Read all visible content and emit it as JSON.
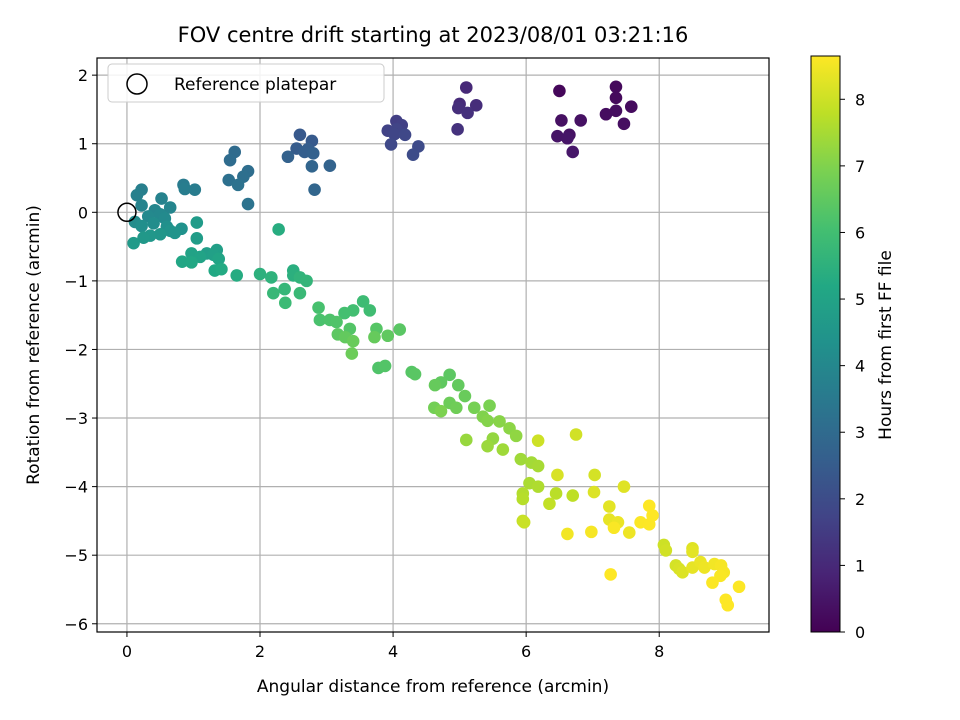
{
  "chart_data": {
    "type": "scatter",
    "title": "FOV centre drift starting at 2023/08/01 03:21:16",
    "xlabel": "Angular distance from reference (arcmin)",
    "ylabel": "Rotation from reference (arcmin)",
    "colorbar_label": "Hours from first FF file",
    "colormap": "viridis",
    "xlim": [
      -0.45,
      9.65
    ],
    "ylim": [
      -6.12,
      2.25
    ],
    "clim": [
      0,
      8.65
    ],
    "x_ticks": [
      0,
      2,
      4,
      6,
      8
    ],
    "y_ticks": [
      2,
      1,
      0,
      -1,
      -2,
      -3,
      -4,
      -5,
      -6
    ],
    "c_ticks": [
      0,
      1,
      2,
      3,
      4,
      5,
      6,
      7,
      8
    ],
    "x_tick_labels": [
      "0",
      "2",
      "4",
      "6",
      "8"
    ],
    "y_tick_labels": [
      "2",
      "1",
      "0",
      "−1",
      "−2",
      "−3",
      "−4",
      "−5",
      "−6"
    ],
    "c_tick_labels": [
      "0",
      "1",
      "2",
      "3",
      "4",
      "5",
      "6",
      "7",
      "8"
    ],
    "grid": true,
    "legend": {
      "position": "top-left",
      "entries": [
        "Reference platepar"
      ]
    },
    "reference_point": [
      0,
      0
    ],
    "points": [
      [
        6.5,
        1.77,
        0.15
      ],
      [
        7.35,
        1.83,
        0.2
      ],
      [
        7.35,
        1.67,
        0.22
      ],
      [
        7.58,
        1.54,
        0.25
      ],
      [
        7.2,
        1.43,
        0.28
      ],
      [
        7.35,
        1.48,
        0.3
      ],
      [
        7.47,
        1.29,
        0.33
      ],
      [
        6.53,
        1.34,
        0.37
      ],
      [
        6.82,
        1.34,
        0.4
      ],
      [
        6.65,
        1.13,
        0.43
      ],
      [
        6.47,
        1.11,
        0.46
      ],
      [
        6.62,
        1.08,
        0.5
      ],
      [
        6.7,
        0.88,
        0.55
      ],
      [
        5.1,
        1.82,
        1.0
      ],
      [
        5.0,
        1.58,
        1.05
      ],
      [
        5.25,
        1.56,
        1.1
      ],
      [
        4.98,
        1.52,
        1.15
      ],
      [
        5.12,
        1.45,
        1.2
      ],
      [
        4.97,
        1.21,
        1.25
      ],
      [
        4.05,
        1.33,
        1.6
      ],
      [
        4.13,
        1.27,
        1.65
      ],
      [
        3.92,
        1.19,
        1.7
      ],
      [
        4.05,
        1.21,
        1.75
      ],
      [
        4.02,
        1.14,
        1.8
      ],
      [
        4.18,
        1.13,
        1.85
      ],
      [
        3.97,
        0.99,
        1.9
      ],
      [
        4.38,
        0.96,
        1.95
      ],
      [
        4.3,
        0.84,
        2.0
      ],
      [
        2.6,
        1.13,
        2.4
      ],
      [
        2.78,
        1.04,
        2.45
      ],
      [
        2.55,
        0.93,
        2.5
      ],
      [
        2.72,
        0.92,
        2.55
      ],
      [
        2.67,
        0.88,
        2.6
      ],
      [
        2.8,
        0.86,
        2.65
      ],
      [
        2.42,
        0.81,
        2.7
      ],
      [
        3.05,
        0.68,
        2.75
      ],
      [
        2.78,
        0.67,
        2.8
      ],
      [
        2.82,
        0.33,
        2.85
      ],
      [
        1.62,
        0.88,
        3.0
      ],
      [
        1.55,
        0.76,
        3.05
      ],
      [
        1.82,
        0.6,
        3.1
      ],
      [
        1.75,
        0.52,
        3.15
      ],
      [
        1.53,
        0.47,
        3.2
      ],
      [
        1.67,
        0.4,
        3.25
      ],
      [
        1.82,
        0.12,
        3.3
      ],
      [
        0.85,
        0.4,
        3.55
      ],
      [
        1.02,
        0.33,
        3.6
      ],
      [
        0.87,
        0.34,
        3.65
      ],
      [
        0.22,
        0.33,
        3.7
      ],
      [
        0.15,
        0.25,
        3.75
      ],
      [
        0.52,
        0.2,
        3.8
      ],
      [
        0.22,
        0.1,
        3.85
      ],
      [
        0.65,
        0.07,
        3.9
      ],
      [
        0.42,
        0.03,
        3.95
      ],
      [
        0.5,
        -0.03,
        4.0
      ],
      [
        0.32,
        -0.06,
        4.05
      ],
      [
        0.57,
        -0.09,
        4.1
      ],
      [
        0.12,
        -0.14,
        4.15
      ],
      [
        0.4,
        -0.16,
        4.2
      ],
      [
        0.22,
        -0.2,
        4.25
      ],
      [
        0.6,
        -0.21,
        4.3
      ],
      [
        0.82,
        -0.24,
        4.35
      ],
      [
        0.65,
        -0.27,
        4.4
      ],
      [
        0.72,
        -0.3,
        4.45
      ],
      [
        0.5,
        -0.32,
        4.5
      ],
      [
        0.35,
        -0.34,
        4.55
      ],
      [
        0.25,
        -0.37,
        4.6
      ],
      [
        0.1,
        -0.45,
        4.65
      ],
      [
        1.05,
        -0.15,
        4.7
      ],
      [
        1.05,
        -0.38,
        4.75
      ],
      [
        1.2,
        -0.6,
        4.8
      ],
      [
        1.35,
        -0.55,
        4.85
      ],
      [
        1.3,
        -0.62,
        4.9
      ],
      [
        0.97,
        -0.6,
        4.95
      ],
      [
        1.1,
        -0.65,
        5.0
      ],
      [
        1.38,
        -0.68,
        5.05
      ],
      [
        0.83,
        -0.72,
        5.1
      ],
      [
        0.97,
        -0.73,
        5.15
      ],
      [
        1.32,
        -0.85,
        5.2
      ],
      [
        1.42,
        -0.83,
        5.25
      ],
      [
        1.65,
        -0.92,
        5.3
      ],
      [
        2.28,
        -0.25,
        5.35
      ],
      [
        2.5,
        -0.85,
        5.4
      ],
      [
        2.5,
        -0.92,
        5.45
      ],
      [
        2.0,
        -0.9,
        5.5
      ],
      [
        2.17,
        -0.95,
        5.55
      ],
      [
        2.6,
        -0.95,
        5.6
      ],
      [
        2.7,
        -1.0,
        5.65
      ],
      [
        2.37,
        -1.12,
        5.7
      ],
      [
        2.2,
        -1.18,
        5.75
      ],
      [
        2.6,
        -1.18,
        5.8
      ],
      [
        2.38,
        -1.32,
        5.85
      ],
      [
        3.55,
        -1.3,
        5.9
      ],
      [
        3.65,
        -1.43,
        5.95
      ],
      [
        3.4,
        -1.43,
        6.0
      ],
      [
        3.27,
        -1.47,
        6.05
      ],
      [
        2.88,
        -1.39,
        6.1
      ],
      [
        2.9,
        -1.57,
        6.15
      ],
      [
        3.05,
        -1.57,
        6.2
      ],
      [
        3.15,
        -1.6,
        6.25
      ],
      [
        3.35,
        -1.7,
        6.3
      ],
      [
        3.75,
        -1.7,
        6.35
      ],
      [
        4.1,
        -1.71,
        6.4
      ],
      [
        3.17,
        -1.78,
        6.45
      ],
      [
        3.92,
        -1.8,
        6.5
      ],
      [
        3.28,
        -1.82,
        6.55
      ],
      [
        3.72,
        -1.82,
        6.6
      ],
      [
        3.4,
        -1.88,
        6.65
      ],
      [
        3.38,
        -2.06,
        6.7
      ],
      [
        3.78,
        -2.27,
        6.25
      ],
      [
        3.88,
        -2.24,
        6.3
      ],
      [
        4.28,
        -2.33,
        6.35
      ],
      [
        4.33,
        -2.36,
        6.4
      ],
      [
        4.85,
        -2.37,
        6.45
      ],
      [
        4.72,
        -2.48,
        6.5
      ],
      [
        4.98,
        -2.52,
        6.55
      ],
      [
        4.63,
        -2.52,
        6.6
      ],
      [
        5.08,
        -2.68,
        6.65
      ],
      [
        4.85,
        -2.78,
        6.7
      ],
      [
        4.95,
        -2.85,
        6.75
      ],
      [
        4.62,
        -2.85,
        6.8
      ],
      [
        5.22,
        -2.85,
        6.85
      ],
      [
        5.45,
        -2.82,
        6.9
      ],
      [
        4.72,
        -2.9,
        6.95
      ],
      [
        5.35,
        -2.98,
        7.0
      ],
      [
        5.42,
        -3.04,
        7.05
      ],
      [
        5.6,
        -3.05,
        7.1
      ],
      [
        5.75,
        -3.15,
        7.15
      ],
      [
        5.85,
        -3.26,
        7.2
      ],
      [
        5.5,
        -3.3,
        7.25
      ],
      [
        5.1,
        -3.32,
        7.3
      ],
      [
        5.42,
        -3.41,
        7.35
      ],
      [
        5.65,
        -3.46,
        7.4
      ],
      [
        5.92,
        -3.6,
        7.4
      ],
      [
        6.08,
        -3.65,
        7.45
      ],
      [
        6.18,
        -3.7,
        7.5
      ],
      [
        6.05,
        -3.95,
        7.55
      ],
      [
        6.18,
        -4.0,
        7.6
      ],
      [
        5.95,
        -4.1,
        7.65
      ],
      [
        5.95,
        -4.18,
        7.7
      ],
      [
        6.45,
        -4.1,
        7.75
      ],
      [
        6.7,
        -4.13,
        7.8
      ],
      [
        6.35,
        -4.25,
        7.85
      ],
      [
        5.95,
        -4.5,
        7.9
      ],
      [
        5.97,
        -4.52,
        7.95
      ],
      [
        6.18,
        -3.33,
        8.0
      ],
      [
        6.75,
        -3.24,
        8.05
      ],
      [
        7.03,
        -3.83,
        8.1
      ],
      [
        6.47,
        -3.83,
        8.15
      ],
      [
        7.02,
        -4.08,
        8.2
      ],
      [
        7.47,
        -4.0,
        8.25
      ],
      [
        7.25,
        -4.29,
        8.3
      ],
      [
        7.25,
        -4.48,
        8.35
      ],
      [
        7.38,
        -4.52,
        8.4
      ],
      [
        7.55,
        -4.67,
        8.45
      ],
      [
        6.62,
        -4.69,
        8.5
      ],
      [
        6.98,
        -4.66,
        8.55
      ],
      [
        7.32,
        -4.6,
        8.6
      ],
      [
        7.72,
        -4.52,
        8.62
      ],
      [
        7.85,
        -4.55,
        8.64
      ],
      [
        7.85,
        -4.28,
        8.66
      ],
      [
        7.9,
        -4.42,
        8.68
      ],
      [
        7.27,
        -5.28,
        8.7
      ],
      [
        8.07,
        -4.85,
        8.0
      ],
      [
        8.1,
        -4.93,
        8.05
      ],
      [
        8.25,
        -5.15,
        8.1
      ],
      [
        8.3,
        -5.2,
        8.15
      ],
      [
        8.35,
        -5.25,
        8.2
      ],
      [
        8.5,
        -4.9,
        8.25
      ],
      [
        8.5,
        -4.95,
        8.3
      ],
      [
        8.5,
        -5.18,
        8.35
      ],
      [
        8.62,
        -5.1,
        8.4
      ],
      [
        8.68,
        -5.18,
        8.45
      ],
      [
        8.83,
        -5.13,
        8.5
      ],
      [
        8.93,
        -5.15,
        8.55
      ],
      [
        8.97,
        -5.25,
        8.57
      ],
      [
        8.92,
        -5.3,
        8.6
      ],
      [
        8.8,
        -5.4,
        8.62
      ],
      [
        9.2,
        -5.46,
        8.64
      ],
      [
        9.0,
        -5.65,
        8.66
      ],
      [
        9.03,
        -5.73,
        8.68
      ]
    ]
  }
}
